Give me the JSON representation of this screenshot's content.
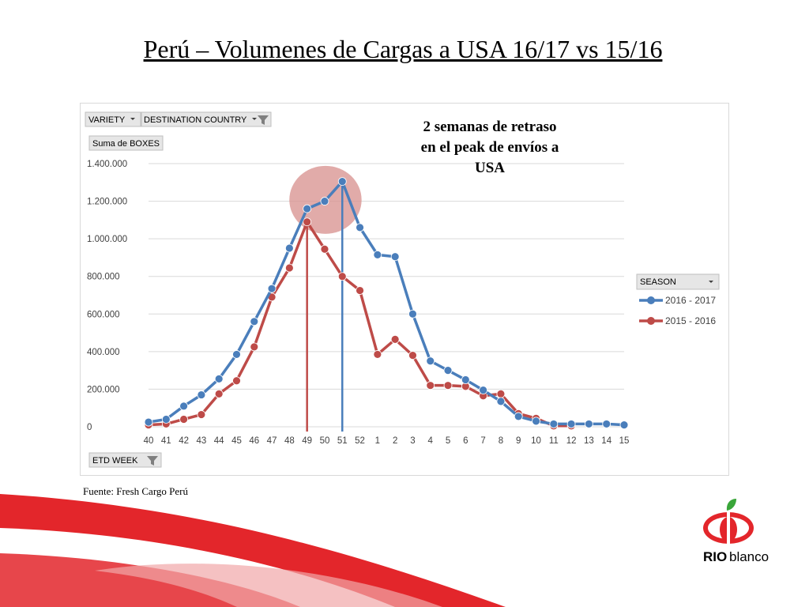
{
  "slide": {
    "title": "Perú – Volumenes de Cargas a USA 16/17 vs 15/16",
    "source": "Fuente: Fresh Cargo Perú",
    "logo_text_bold": "RIO",
    "logo_text_regular": "blanco"
  },
  "filters": {
    "variety": "VARIETY",
    "destination": "DESTINATION COUNTRY",
    "values_field": "Suma de BOXES",
    "axis_field": "ETD WEEK",
    "legend_field": "SEASON"
  },
  "chart_data": {
    "type": "line",
    "x": [
      "40",
      "41",
      "42",
      "43",
      "44",
      "45",
      "46",
      "47",
      "48",
      "49",
      "50",
      "51",
      "52",
      "1",
      "2",
      "3",
      "4",
      "5",
      "6",
      "7",
      "8",
      "9",
      "10",
      "11",
      "12",
      "13",
      "14",
      "15"
    ],
    "series": [
      {
        "name": "2016 - 2017",
        "color": "#4a7ebb",
        "values": [
          25000,
          40000,
          110000,
          170000,
          255000,
          385000,
          560000,
          735000,
          950000,
          1160000,
          1200000,
          1305000,
          1060000,
          915000,
          905000,
          600000,
          350000,
          300000,
          250000,
          195000,
          135000,
          55000,
          30000,
          15000,
          15000,
          15000,
          15000,
          10000
        ]
      },
      {
        "name": "2015 - 2016",
        "color": "#be4b48",
        "values": [
          10000,
          15000,
          40000,
          65000,
          175000,
          245000,
          425000,
          690000,
          845000,
          1090000,
          945000,
          800000,
          725000,
          385000,
          465000,
          380000,
          220000,
          220000,
          215000,
          165000,
          175000,
          70000,
          45000,
          5000,
          5000,
          null,
          null,
          null
        ]
      }
    ],
    "ylim": [
      0,
      1400000
    ],
    "yticks": [
      0,
      200000,
      400000,
      600000,
      800000,
      1000000,
      1200000,
      1400000
    ],
    "ytick_labels": [
      "0",
      "200.000",
      "400.000",
      "600.000",
      "800.000",
      "1.000.000",
      "1.200.000",
      "1.400.000"
    ],
    "grid": true,
    "legend_position": "right",
    "annotation": {
      "lines": [
        "2 semanas de retraso",
        "en el peak de envíos a",
        "USA"
      ],
      "highlight_color": "#d99694"
    },
    "markers": [
      {
        "x": "49",
        "series": "2015 - 2016"
      },
      {
        "x": "51",
        "series": "2016 - 2017"
      }
    ]
  }
}
